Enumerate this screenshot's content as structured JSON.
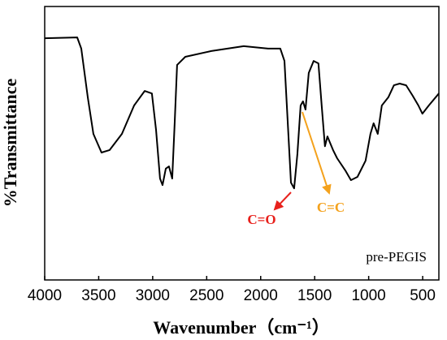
{
  "chart_data": {
    "type": "line",
    "xlabel": "Wavenumber（cm⁻¹）",
    "ylabel": "%Transmittance",
    "xlim": [
      4000,
      350
    ],
    "ylim": [
      0,
      100
    ],
    "xticks": [
      4000,
      3500,
      3000,
      2500,
      2000,
      1500,
      1000,
      500
    ],
    "series": [
      {
        "name": "pre-PEGIS",
        "color": "#000000",
        "x": [
          4000,
          3699,
          3661,
          3601,
          3549,
          3474,
          3399,
          3285,
          3172,
          3074,
          3007,
          2969,
          2932,
          2909,
          2879,
          2849,
          2819,
          2796,
          2774,
          2698,
          2457,
          2157,
          1931,
          1818,
          1780,
          1750,
          1720,
          1690,
          1660,
          1630,
          1608,
          1585,
          1555,
          1510,
          1465,
          1435,
          1405,
          1382,
          1360,
          1330,
          1292,
          1217,
          1164,
          1104,
          1029,
          984,
          954,
          916,
          878,
          818,
          766,
          713,
          653,
          593,
          540,
          503,
          443,
          350
        ],
        "values": [
          88.4,
          88.7,
          84.6,
          66.8,
          53.4,
          46.6,
          47.5,
          53.4,
          63.8,
          69.1,
          68.2,
          54.9,
          37.1,
          34.7,
          40.7,
          41.5,
          37.1,
          57.9,
          78.6,
          81.6,
          83.7,
          85.5,
          84.6,
          84.6,
          80.1,
          57.9,
          35.6,
          33.5,
          46.0,
          63.8,
          65.3,
          62.3,
          75.7,
          80.1,
          79.2,
          63.8,
          48.9,
          52.5,
          50.4,
          47.5,
          44.5,
          40.1,
          36.5,
          37.7,
          43.6,
          53.4,
          57.3,
          53.4,
          63.8,
          66.8,
          71.2,
          71.8,
          71.2,
          67.4,
          63.8,
          60.8,
          63.8,
          68.2
        ]
      }
    ],
    "annotations": [
      {
        "text": "C=O",
        "color": "#e8211c"
      },
      {
        "text": "C=C",
        "color": "#f4a21d"
      }
    ]
  }
}
